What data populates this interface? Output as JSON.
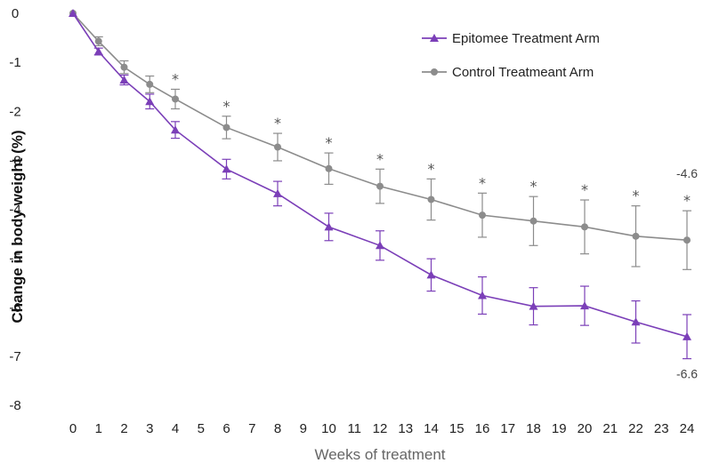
{
  "chart_data": {
    "type": "line",
    "xlabel": "Weeks of treatment",
    "ylabel": "Change in body weight (%)",
    "x_ticks": [
      0,
      1,
      2,
      3,
      4,
      5,
      6,
      7,
      8,
      9,
      10,
      11,
      12,
      13,
      14,
      15,
      16,
      17,
      18,
      19,
      20,
      21,
      22,
      23,
      24
    ],
    "y_ticks": [
      0,
      -1,
      -2,
      -3,
      -4,
      -5,
      -6,
      -7,
      -8
    ],
    "xlim": [
      0,
      24
    ],
    "ylim": [
      -8,
      0
    ],
    "grid": false,
    "legend_position": "top-right",
    "colors": {
      "epitomee": "#7b3fb8",
      "control": "#8c8c8c"
    },
    "series": [
      {
        "name": "Epitomee Treatment Arm",
        "marker": "triangle",
        "x": [
          0,
          1,
          2,
          3,
          4,
          6,
          8,
          10,
          12,
          14,
          16,
          18,
          20,
          22,
          24
        ],
        "y": [
          0,
          -0.78,
          -1.36,
          -1.8,
          -2.38,
          -3.18,
          -3.68,
          -4.36,
          -4.74,
          -5.34,
          -5.76,
          -5.98,
          -5.97,
          -6.3,
          -6.6
        ],
        "err": [
          0,
          0.07,
          0.1,
          0.15,
          0.17,
          0.2,
          0.25,
          0.28,
          0.3,
          0.33,
          0.38,
          0.38,
          0.4,
          0.43,
          0.45
        ]
      },
      {
        "name": "Control Treatmeant Arm",
        "marker": "circle",
        "x": [
          0,
          1,
          2,
          3,
          4,
          6,
          8,
          10,
          12,
          14,
          16,
          18,
          20,
          22,
          24
        ],
        "y": [
          0,
          -0.57,
          -1.1,
          -1.45,
          -1.75,
          -2.33,
          -2.73,
          -3.17,
          -3.53,
          -3.8,
          -4.12,
          -4.24,
          -4.36,
          -4.55,
          -4.63
        ],
        "err": [
          0,
          0.09,
          0.13,
          0.17,
          0.2,
          0.23,
          0.28,
          0.32,
          0.35,
          0.42,
          0.45,
          0.5,
          0.55,
          0.62,
          0.6
        ]
      }
    ],
    "significance_marker": "*",
    "significance_x": [
      4,
      6,
      8,
      10,
      12,
      14,
      16,
      18,
      20,
      22,
      24
    ],
    "end_labels": [
      {
        "series": "Control Treatmeant Arm",
        "text": "-4.6"
      },
      {
        "series": "Epitomee Treatment Arm",
        "text": "-6.6"
      }
    ]
  }
}
